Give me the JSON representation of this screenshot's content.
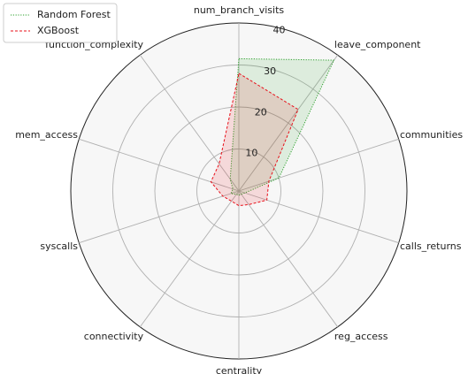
{
  "chart_data": {
    "type": "radar",
    "categories": [
      "num_branch_visits",
      "leave_component",
      "communities",
      "calls_returns",
      "reg_access",
      "centrality",
      "connectivity",
      "syscalls",
      "mem_access",
      "function_complexity"
    ],
    "series": [
      {
        "name": "Random Forest",
        "color": "#2ca02c",
        "line_style": "dotted",
        "values": [
          31.5,
          38.5,
          10,
          1.5,
          1,
          1,
          1,
          2,
          1.5,
          3.5
        ]
      },
      {
        "name": "XGBoost",
        "color": "#e8101a",
        "line_style": "dashed",
        "values": [
          28,
          24,
          7.5,
          7,
          4,
          3.5,
          3,
          4,
          7,
          8
        ]
      }
    ],
    "ylim": [
      0,
      40
    ],
    "yticks": [
      10,
      20,
      30,
      40
    ],
    "grid": true,
    "legend": "upper left"
  }
}
